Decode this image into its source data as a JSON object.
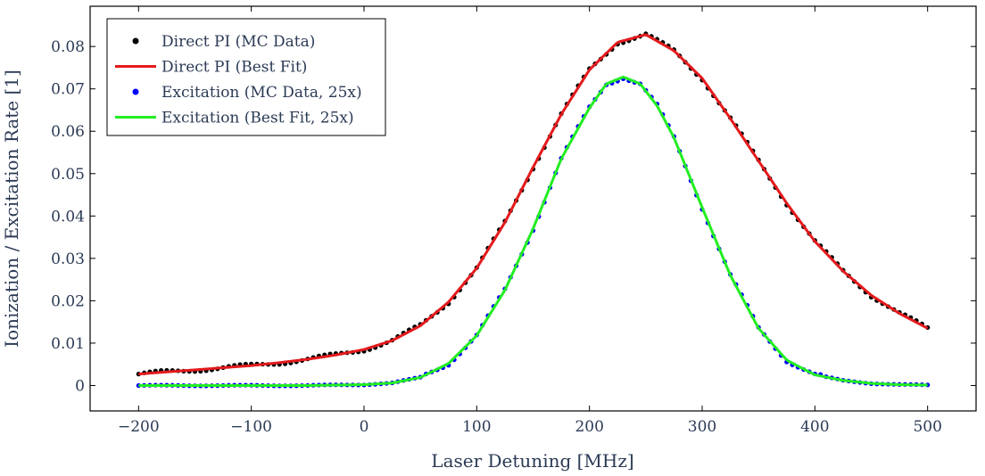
{
  "chart_data": {
    "type": "scatter",
    "title": "",
    "xlabel": "Laser Detuning [MHz]",
    "ylabel": "Ionization / Excitation Rate [1]",
    "xlim": [
      -243,
      543
    ],
    "ylim": [
      -0.006,
      0.0895
    ],
    "x_ticks": [
      -200,
      -100,
      0,
      100,
      200,
      300,
      400,
      500
    ],
    "x_tick_labels": [
      "−200",
      "−100",
      "0",
      "100",
      "200",
      "300",
      "400",
      "500"
    ],
    "y_ticks": [
      0,
      0.01,
      0.02,
      0.03,
      0.04,
      0.05,
      0.06,
      0.07,
      0.08
    ],
    "y_tick_labels": [
      "0",
      "0.01",
      "0.02",
      "0.03",
      "0.04",
      "0.05",
      "0.06",
      "0.07",
      "0.08"
    ],
    "grid": false,
    "legend_position": "top-left",
    "series": [
      {
        "name": "Direct PI (MC Data)",
        "kind": "points",
        "color": "#000000",
        "error_bars": true,
        "x": [
          -200,
          -175,
          -150,
          -125,
          -100,
          -75,
          -50,
          -25,
          0,
          25,
          50,
          75,
          100,
          125,
          150,
          175,
          200,
          225,
          250,
          275,
          300,
          325,
          350,
          375,
          400,
          425,
          450,
          475,
          500
        ],
        "y": [
          0.0027,
          0.0032,
          0.0037,
          0.0042,
          0.0047,
          0.0054,
          0.0062,
          0.0072,
          0.0085,
          0.0106,
          0.0141,
          0.0197,
          0.0277,
          0.0385,
          0.0515,
          0.064,
          0.0745,
          0.081,
          0.0828,
          0.079,
          0.0725,
          0.063,
          0.053,
          0.043,
          0.034,
          0.027,
          0.0213,
          0.017,
          0.0135
        ]
      },
      {
        "name": "Direct PI (Best Fit)",
        "kind": "line",
        "color": "#e41a1c",
        "x": [
          -200,
          -175,
          -150,
          -125,
          -100,
          -75,
          -50,
          -25,
          0,
          25,
          50,
          75,
          100,
          125,
          150,
          175,
          200,
          225,
          250,
          275,
          300,
          325,
          350,
          375,
          400,
          425,
          450,
          475,
          500
        ],
        "y": [
          0.0027,
          0.0032,
          0.0037,
          0.0042,
          0.0047,
          0.0054,
          0.0062,
          0.0072,
          0.0085,
          0.0106,
          0.0141,
          0.0197,
          0.0277,
          0.0385,
          0.0515,
          0.064,
          0.0745,
          0.081,
          0.0828,
          0.079,
          0.0725,
          0.063,
          0.053,
          0.043,
          0.034,
          0.027,
          0.0213,
          0.017,
          0.0135
        ]
      },
      {
        "name": "Excitation (MC Data, 25x)",
        "kind": "points",
        "color": "#0000ff",
        "error_bars": true,
        "x": [
          -200,
          -150,
          -100,
          -50,
          0,
          25,
          50,
          75,
          100,
          125,
          150,
          175,
          200,
          215,
          230,
          245,
          260,
          275,
          300,
          325,
          350,
          375,
          400,
          425,
          450,
          475,
          500
        ],
        "y": [
          0,
          0,
          0,
          0,
          0.0002,
          0.0006,
          0.0019,
          0.0052,
          0.0118,
          0.0225,
          0.037,
          0.0535,
          0.0655,
          0.0712,
          0.0728,
          0.0712,
          0.066,
          0.0585,
          0.042,
          0.026,
          0.0135,
          0.006,
          0.0025,
          0.0012,
          0.0005,
          0.0002,
          0.0001
        ]
      },
      {
        "name": "Excitation (Best Fit, 25x)",
        "kind": "line",
        "color": "#22ee22",
        "x": [
          -200,
          -150,
          -100,
          -50,
          0,
          25,
          50,
          75,
          100,
          125,
          150,
          175,
          200,
          215,
          230,
          245,
          260,
          275,
          300,
          325,
          350,
          375,
          400,
          425,
          450,
          475,
          500
        ],
        "y": [
          0,
          0,
          0,
          0,
          0.0002,
          0.0006,
          0.0019,
          0.0052,
          0.0118,
          0.0225,
          0.037,
          0.0535,
          0.0655,
          0.0712,
          0.0728,
          0.0712,
          0.066,
          0.0585,
          0.042,
          0.026,
          0.0135,
          0.006,
          0.0025,
          0.0012,
          0.0005,
          0.0002,
          0.0001
        ]
      }
    ]
  },
  "legend": {
    "entries": [
      {
        "label": "Direct PI (MC Data)",
        "marker": "dot",
        "color": "#000000"
      },
      {
        "label": "Direct PI (Best Fit)",
        "marker": "line",
        "color": "#e41a1c"
      },
      {
        "label": "Excitation (MC Data, 25x)",
        "marker": "dot",
        "color": "#0000ff"
      },
      {
        "label": "Excitation (Best Fit, 25x)",
        "marker": "line",
        "color": "#22ee22"
      }
    ]
  }
}
